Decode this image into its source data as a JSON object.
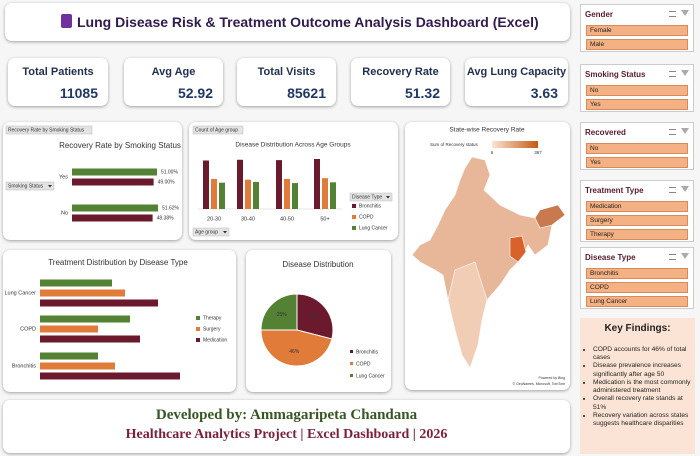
{
  "header": {
    "title": "Lung Disease Risk & Treatment Outcome Analysis Dashboard (Excel)"
  },
  "kpis": [
    {
      "label": "Total Patients",
      "value": 11085
    },
    {
      "label": "Avg Age",
      "value": 52.92
    },
    {
      "label": "Total Visits",
      "value": 85621
    },
    {
      "label": "Recovery Rate",
      "value": 51.32
    },
    {
      "label": "Avg Lung Capacity",
      "value": 3.63
    }
  ],
  "slicers": [
    {
      "title": "Gender",
      "items": [
        "Female",
        "Male"
      ]
    },
    {
      "title": "Smoking Status",
      "items": [
        "No",
        "Yes"
      ]
    },
    {
      "title": "Recovered",
      "items": [
        "No",
        "Yes"
      ]
    },
    {
      "title": "Treatment Type",
      "items": [
        "Medication",
        "Surgery",
        "Therapy"
      ]
    },
    {
      "title": "Disease Type",
      "items": [
        "Bronchitis",
        "COPD",
        "Lung Cancer"
      ]
    }
  ],
  "chart_data": [
    {
      "type": "hbar",
      "title": "Recovery Rate by Smoking Status",
      "field_buttons": [
        "Recovery Rate by Smoking Status",
        "Smoking Status"
      ],
      "categories": [
        "Yes",
        "No"
      ],
      "series": [
        {
          "color": "#548235",
          "values": [
            51.0,
            51.62
          ],
          "value_labels": [
            "51.00%",
            "51.62%"
          ]
        },
        {
          "color": "#6b1a2e",
          "values": [
            49.0,
            48.38
          ],
          "value_labels": [
            "49.00%",
            "48.38%"
          ]
        }
      ]
    },
    {
      "type": "column",
      "title": "Disease Distribution Across Age Groups",
      "field_buttons": [
        "Count of Age group",
        "Age group"
      ],
      "legend_title": "Disease Type",
      "categories": [
        "20-30",
        "30-40",
        "40-50",
        "50+"
      ],
      "series": [
        {
          "name": "Bronchitis",
          "color": "#6b1a2e",
          "values": [
            1290,
            1310,
            1300,
            1330
          ]
        },
        {
          "name": "COPD",
          "color": "#e07b39",
          "values": [
            800,
            780,
            800,
            820
          ]
        },
        {
          "name": "Lung Cancer",
          "color": "#548235",
          "values": [
            700,
            720,
            690,
            710
          ]
        }
      ]
    },
    {
      "type": "hbar",
      "title": "Treatment Distribution by Disease Type",
      "categories": [
        "Lung Cancer",
        "COPD",
        "Bronchitis"
      ],
      "series": [
        {
          "name": "Therapy",
          "color": "#548235",
          "values": [
            720,
            900,
            580
          ]
        },
        {
          "name": "Surgery",
          "color": "#e07b39",
          "values": [
            850,
            580,
            750
          ]
        },
        {
          "name": "Medication",
          "color": "#6b1a2e",
          "values": [
            1180,
            1000,
            1400
          ]
        }
      ]
    },
    {
      "type": "pie",
      "title": "Disease Distribution",
      "categories": [
        "Bronchitis",
        "COPD",
        "Lung Cancer"
      ],
      "values": [
        29,
        46,
        25
      ],
      "value_labels": [
        "29%",
        "46%",
        "25%"
      ],
      "colors": [
        "#6b1a2e",
        "#e07b39",
        "#548235"
      ]
    }
  ],
  "map": {
    "title": "State-wise Recovery Rate",
    "legend_title": "Sum of Recovery status",
    "legend_ticks": [
      6,
      367
    ],
    "credits": [
      "Powered by Bing",
      "© GeoNames, Microsoft, TomTom"
    ]
  },
  "footer": {
    "developer": "Developed by: Ammagaripeta Chandana",
    "project": "Healthcare Analytics Project | Excel Dashboard | 2026"
  },
  "key_findings": {
    "title": "Key Findings:",
    "items": [
      "COPD accounts for 46% of total cases",
      "Disease prevalence increases significantly after age 50",
      "Medication is the most commonly administered treatment",
      "Overall recovery rate stands at 51%",
      "Recovery variation across states suggests healthcare disparities"
    ]
  }
}
